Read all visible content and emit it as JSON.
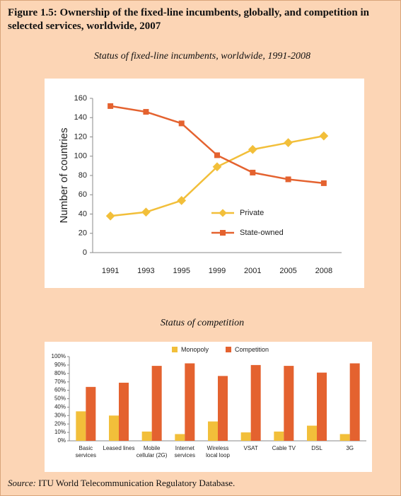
{
  "title": "Figure 1.5: Ownership of the fixed-line incumbents, globally, and competition in selected services, worldwide, 2007",
  "source_label": "Source:",
  "source": "ITU World Telecommunication Regulatory Database.",
  "chart_data": [
    {
      "type": "line",
      "title": "Status of fixed-line incumbents, worldwide, 1991-2008",
      "y_label": "Number of countries",
      "categories": [
        "1991",
        "1993",
        "1995",
        "1999",
        "2001",
        "2005",
        "2008"
      ],
      "series": [
        {
          "name": "Private",
          "color": "#f2bf3a",
          "values": [
            38,
            42,
            54,
            89,
            107,
            114,
            121
          ]
        },
        {
          "name": "State-owned",
          "color": "#e4622f",
          "values": [
            152,
            146,
            134,
            101,
            83,
            76,
            72
          ]
        }
      ],
      "ylim": [
        0,
        160
      ],
      "yticks": [
        0,
        20,
        40,
        60,
        80,
        100,
        120,
        140,
        160
      ],
      "legend": "right"
    },
    {
      "type": "bar",
      "title": "Status of competition",
      "categories": [
        "Basic services",
        "Leased lines",
        "Mobile cellular (2G)",
        "Internet services",
        "Wireless local loop",
        "VSAT",
        "Cable TV",
        "DSL",
        "3G"
      ],
      "series": [
        {
          "name": "Monopoly",
          "color": "#f2bf3a",
          "values": [
            35,
            30,
            11,
            8,
            23,
            10,
            11,
            18,
            8
          ]
        },
        {
          "name": "Competition",
          "color": "#e4622f",
          "values": [
            64,
            69,
            89,
            92,
            77,
            90,
            89,
            81,
            92
          ]
        }
      ],
      "ylim": [
        0,
        100
      ],
      "yticks": [
        {
          "value": 0,
          "label": "0%"
        },
        {
          "value": 10,
          "label": "10%"
        },
        {
          "value": 20,
          "label": "20%"
        },
        {
          "value": 30,
          "label": "30%"
        },
        {
          "value": 40,
          "label": "40%"
        },
        {
          "value": 50,
          "label": "50%"
        },
        {
          "value": 60,
          "label": "60%"
        },
        {
          "value": 70,
          "label": "70%"
        },
        {
          "value": 80,
          "label": "80%"
        },
        {
          "value": 90,
          "label": "90%"
        },
        {
          "value": 100,
          "label": "100%"
        }
      ],
      "legend": "top"
    }
  ]
}
